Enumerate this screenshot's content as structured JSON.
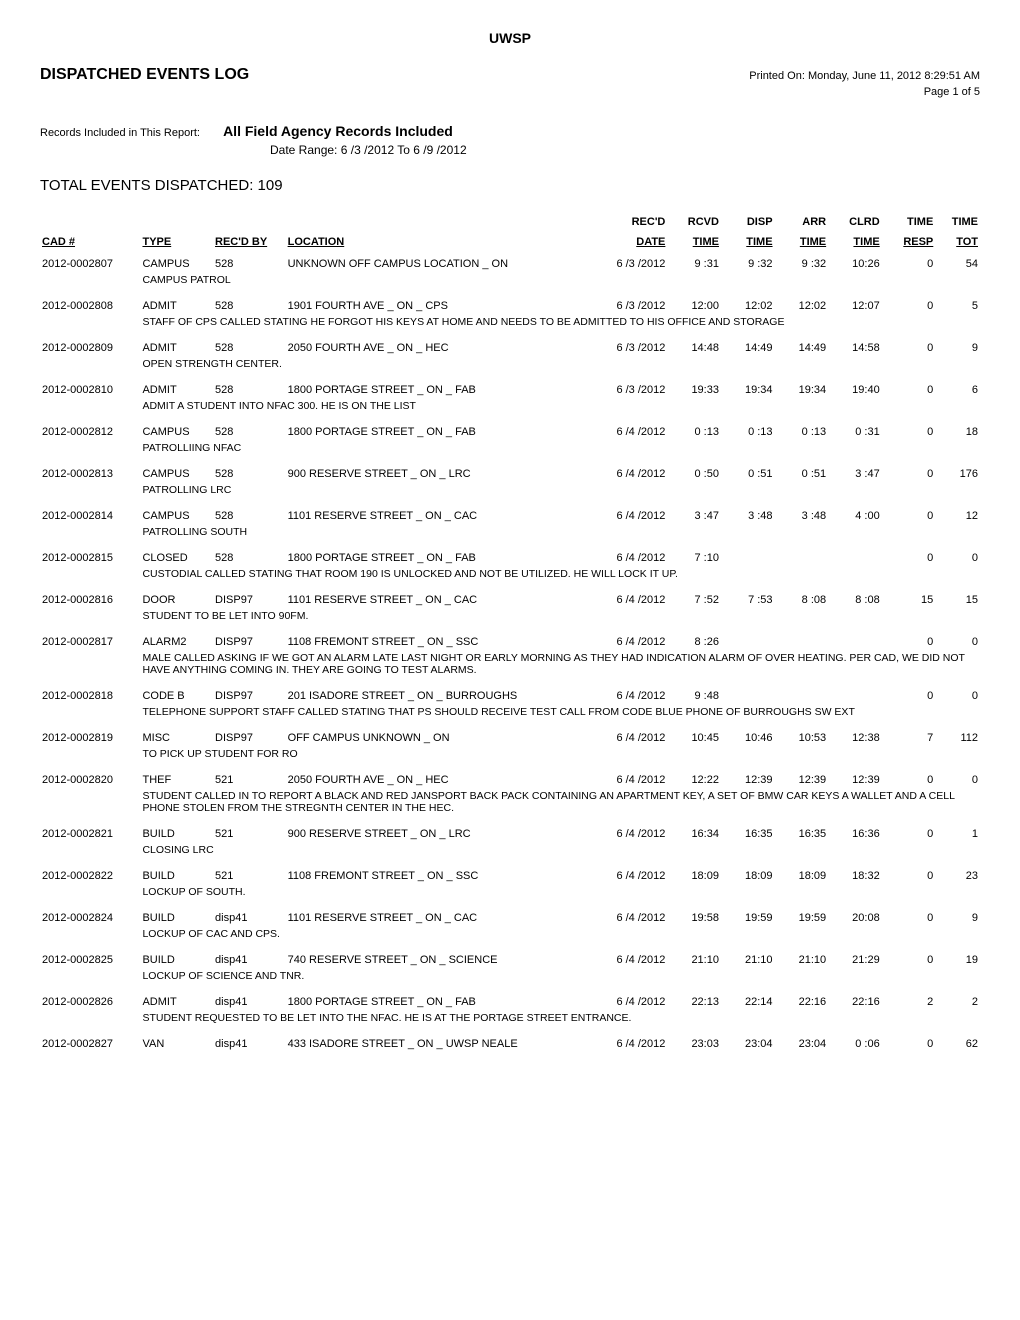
{
  "header": {
    "org": "UWSP",
    "title": "DISPATCHED EVENTS LOG",
    "printed_on": "Printed On: Monday, June 11, 2012 8:29:51 AM",
    "page": "Page 1 of 5",
    "records_label": "Records Included in This Report:",
    "records_title": "All Field Agency Records Included",
    "date_range_label": "Date Range:",
    "date_range_value": "6 /3 /2012   To   6 /9 /2012",
    "total_label": "TOTAL EVENTS DISPATCHED:  109"
  },
  "columns": {
    "cad": "CAD #",
    "type": "TYPE",
    "recby": "REC'D BY",
    "location": "LOCATION",
    "recd_date_top": "REC'D",
    "recd_date": "DATE",
    "rcvd_top": "RCVD",
    "rcvd": "TIME",
    "disp_top": "DISP",
    "disp": "TIME",
    "arr_top": "ARR",
    "arr": "TIME",
    "clrd_top": "CLRD",
    "clrd": "TIME",
    "resp_top": "TIME",
    "resp": "RESP",
    "tot_top": "TIME",
    "tot": "TOT"
  },
  "rows": [
    {
      "cad": "2012-0002807",
      "type": "CAMPUS",
      "recby": "528",
      "loc": "UNKNOWN OFF CAMPUS LOCATION _ ON",
      "date": "6 /3 /2012",
      "rcvd": "9 :31",
      "disp": "9 :32",
      "arr": "9 :32",
      "clrd": "10:26",
      "resp": "0",
      "tot": "54",
      "desc": "CAMPUS PATROL"
    },
    {
      "cad": "2012-0002808",
      "type": "ADMIT",
      "recby": "528",
      "loc": "1901 FOURTH AVE _ ON _ CPS",
      "date": "6 /3 /2012",
      "rcvd": "12:00",
      "disp": "12:02",
      "arr": "12:02",
      "clrd": "12:07",
      "resp": "0",
      "tot": "5",
      "desc": "STAFF OF CPS CALLED STATING HE FORGOT HIS KEYS AT HOME AND NEEDS TO BE ADMITTED TO HIS OFFICE AND STORAGE"
    },
    {
      "cad": "2012-0002809",
      "type": "ADMIT",
      "recby": "528",
      "loc": "2050 FOURTH AVE _ ON _ HEC",
      "date": "6 /3 /2012",
      "rcvd": "14:48",
      "disp": "14:49",
      "arr": "14:49",
      "clrd": "14:58",
      "resp": "0",
      "tot": "9",
      "desc": "OPEN STRENGTH CENTER."
    },
    {
      "cad": "2012-0002810",
      "type": "ADMIT",
      "recby": "528",
      "loc": "1800 PORTAGE STREET _ ON _ FAB",
      "date": "6 /3 /2012",
      "rcvd": "19:33",
      "disp": "19:34",
      "arr": "19:34",
      "clrd": "19:40",
      "resp": "0",
      "tot": "6",
      "desc": "ADMIT A STUDENT INTO NFAC 300.  HE IS ON THE LIST"
    },
    {
      "cad": "2012-0002812",
      "type": "CAMPUS",
      "recby": "528",
      "loc": "1800 PORTAGE STREET _ ON _ FAB",
      "date": "6 /4 /2012",
      "rcvd": "0 :13",
      "disp": "0 :13",
      "arr": "0 :13",
      "clrd": "0 :31",
      "resp": "0",
      "tot": "18",
      "desc": "PATROLLIING NFAC"
    },
    {
      "cad": "2012-0002813",
      "type": "CAMPUS",
      "recby": "528",
      "loc": "900 RESERVE STREET _ ON _ LRC",
      "date": "6 /4 /2012",
      "rcvd": "0 :50",
      "disp": "0 :51",
      "arr": "0 :51",
      "clrd": "3 :47",
      "resp": "0",
      "tot": "176",
      "desc": "PATROLLING LRC"
    },
    {
      "cad": "2012-0002814",
      "type": "CAMPUS",
      "recby": "528",
      "loc": "1101 RESERVE STREET _ ON _ CAC",
      "date": "6 /4 /2012",
      "rcvd": "3 :47",
      "disp": "3 :48",
      "arr": "3 :48",
      "clrd": "4 :00",
      "resp": "0",
      "tot": "12",
      "desc": "PATROLLING SOUTH"
    },
    {
      "cad": "2012-0002815",
      "type": "CLOSED",
      "recby": "528",
      "loc": "1800 PORTAGE STREET _ ON _ FAB",
      "date": "6 /4 /2012",
      "rcvd": "7 :10",
      "disp": "",
      "arr": "",
      "clrd": "",
      "resp": "0",
      "tot": "0",
      "desc": "CUSTODIAL CALLED STATING THAT ROOM 190 IS UNLOCKED AND NOT BE UTILIZED.  HE WILL LOCK IT UP."
    },
    {
      "cad": "2012-0002816",
      "type": "DOOR",
      "recby": "DISP97",
      "loc": "1101 RESERVE STREET _ ON _ CAC",
      "date": "6 /4 /2012",
      "rcvd": "7 :52",
      "disp": "7 :53",
      "arr": "8 :08",
      "clrd": "8 :08",
      "resp": "15",
      "tot": "15",
      "desc": "STUDENT TO BE LET INTO 90FM."
    },
    {
      "cad": "2012-0002817",
      "type": "ALARM2",
      "recby": "DISP97",
      "loc": "1108 FREMONT STREET _ ON _ SSC",
      "date": "6 /4 /2012",
      "rcvd": "8 :26",
      "disp": "",
      "arr": "",
      "clrd": "",
      "resp": "0",
      "tot": "0",
      "desc": "MALE CALLED ASKING IF WE GOT AN ALARM LATE LAST NIGHT OR EARLY MORNING AS THEY HAD INDICATION ALARM OF OVER HEATING.  PER CAD, WE DID NOT HAVE ANYTHING COMING IN.  THEY ARE GOING TO TEST ALARMS."
    },
    {
      "cad": "2012-0002818",
      "type": "CODE B",
      "recby": "DISP97",
      "loc": "201 ISADORE STREET _ ON _ BURROUGHS",
      "date": "6 /4 /2012",
      "rcvd": "9 :48",
      "disp": "",
      "arr": "",
      "clrd": "",
      "resp": "0",
      "tot": "0",
      "desc": "TELEPHONE SUPPORT STAFF CALLED STATING THAT PS SHOULD RECEIVE TEST CALL FROM CODE BLUE PHONE OF BURROUGHS SW EXT"
    },
    {
      "cad": "2012-0002819",
      "type": "MISC",
      "recby": "DISP97",
      "loc": "OFF CAMPUS UNKNOWN _ ON",
      "date": "6 /4 /2012",
      "rcvd": "10:45",
      "disp": "10:46",
      "arr": "10:53",
      "clrd": "12:38",
      "resp": "7",
      "tot": "112",
      "desc": "TO PICK UP  STUDENT FOR RO"
    },
    {
      "cad": "2012-0002820",
      "type": "THEF",
      "recby": "521",
      "loc": "2050 FOURTH AVE _ ON _ HEC",
      "date": "6 /4 /2012",
      "rcvd": "12:22",
      "disp": "12:39",
      "arr": "12:39",
      "clrd": "12:39",
      "resp": "0",
      "tot": "0",
      "desc": "STUDENT CALLED IN TO REPORT A BLACK AND RED JANSPORT BACK PACK CONTAINING AN APARTMENT KEY, A SET OF BMW CAR KEYS A WALLET AND A CELL PHONE STOLEN FROM THE STREGNTH CENTER IN THE HEC."
    },
    {
      "cad": "2012-0002821",
      "type": "BUILD",
      "recby": "521",
      "loc": "900 RESERVE STREET _ ON _ LRC",
      "date": "6 /4 /2012",
      "rcvd": "16:34",
      "disp": "16:35",
      "arr": "16:35",
      "clrd": "16:36",
      "resp": "0",
      "tot": "1",
      "desc": "CLOSING LRC"
    },
    {
      "cad": "2012-0002822",
      "type": "BUILD",
      "recby": "521",
      "loc": "1108 FREMONT STREET _ ON _ SSC",
      "date": "6 /4 /2012",
      "rcvd": "18:09",
      "disp": "18:09",
      "arr": "18:09",
      "clrd": "18:32",
      "resp": "0",
      "tot": "23",
      "desc": "LOCKUP OF SOUTH."
    },
    {
      "cad": "2012-0002824",
      "type": "BUILD",
      "recby": "disp41",
      "loc": "1101 RESERVE STREET _ ON _ CAC",
      "date": "6 /4 /2012",
      "rcvd": "19:58",
      "disp": "19:59",
      "arr": "19:59",
      "clrd": "20:08",
      "resp": "0",
      "tot": "9",
      "desc": "LOCKUP OF CAC AND CPS."
    },
    {
      "cad": "2012-0002825",
      "type": "BUILD",
      "recby": "disp41",
      "loc": "740 RESERVE STREET _ ON _ SCIENCE",
      "date": "6 /4 /2012",
      "rcvd": "21:10",
      "disp": "21:10",
      "arr": "21:10",
      "clrd": "21:29",
      "resp": "0",
      "tot": "19",
      "desc": "LOCKUP OF SCIENCE AND TNR."
    },
    {
      "cad": "2012-0002826",
      "type": "ADMIT",
      "recby": "disp41",
      "loc": "1800 PORTAGE STREET _ ON _ FAB",
      "date": "6 /4 /2012",
      "rcvd": "22:13",
      "disp": "22:14",
      "arr": "22:16",
      "clrd": "22:16",
      "resp": "2",
      "tot": "2",
      "desc": "STUDENT REQUESTED TO BE LET INTO THE NFAC. HE IS AT THE PORTAGE STREET ENTRANCE."
    },
    {
      "cad": "2012-0002827",
      "type": "VAN",
      "recby": "disp41",
      "loc": "433 ISADORE STREET _ ON _ UWSP NEALE",
      "date": "6 /4 /2012",
      "rcvd": "23:03",
      "disp": "23:04",
      "arr": "23:04",
      "clrd": "0 :06",
      "resp": "0",
      "tot": "62",
      "desc": ""
    }
  ]
}
